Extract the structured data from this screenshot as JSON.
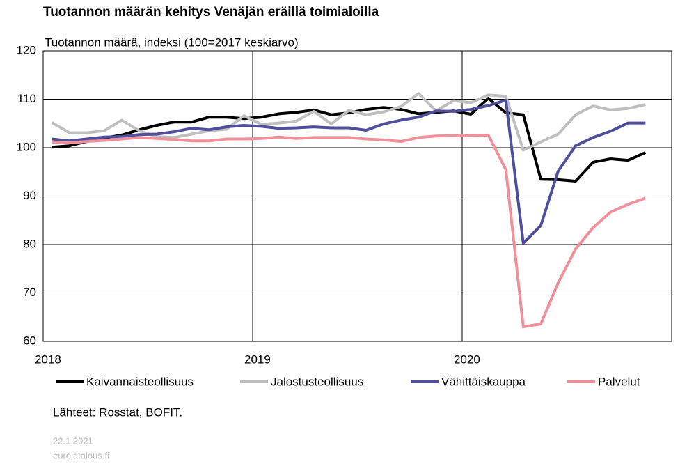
{
  "chart_data": {
    "type": "line",
    "title": "Tuotannon määrän kehitys Venäjän eräillä toimialoilla",
    "subtitle": "Tuotannon määrä, indeksi (100=2017 keskiarvo)",
    "source": "Lähteet: Rosstat, BOFIT.",
    "date": "22.1.2021",
    "site": "eurojatalous.fi",
    "categories": [
      "2018",
      null,
      null,
      null,
      null,
      null,
      null,
      null,
      null,
      null,
      null,
      null,
      "2019",
      null,
      null,
      null,
      null,
      null,
      null,
      null,
      null,
      null,
      null,
      null,
      "2020",
      null,
      null,
      null,
      null,
      null,
      null,
      null,
      null,
      null,
      null
    ],
    "ylim": [
      60,
      120
    ],
    "yticks": [
      60,
      70,
      80,
      90,
      100,
      110,
      120
    ],
    "grid": true,
    "series": [
      {
        "name": "Kaivannaisteollisuus",
        "color": "#000000",
        "values": [
          100.1,
          100.4,
          101.3,
          102,
          102.6,
          103.7,
          104.6,
          105.3,
          105.3,
          106.3,
          106.3,
          106,
          106.3,
          107,
          107.3,
          107.8,
          106.8,
          107.2,
          107.9,
          108.3,
          107.9,
          107,
          107.3,
          107.6,
          106.9,
          110.2,
          107.2,
          106.8,
          93.5,
          93.4,
          93.1,
          97,
          97.7,
          97.4,
          99
        ]
      },
      {
        "name": "Jalostusteollisuus",
        "color": "#bfbfbf",
        "values": [
          105.2,
          103.1,
          103.1,
          103.5,
          105.7,
          103.5,
          102.3,
          102.1,
          102.8,
          103.5,
          103.8,
          106.6,
          104.8,
          105.1,
          105.5,
          107.5,
          104.9,
          107.7,
          106.8,
          107.4,
          108.5,
          111.2,
          107.6,
          109.7,
          109.3,
          110.9,
          110.6,
          99.5,
          101.2,
          102.8,
          106.8,
          108.6,
          107.8,
          108.1,
          108.9
        ]
      },
      {
        "name": "Vähittäiskauppa",
        "color": "#4f4f9e",
        "values": [
          101.8,
          101.4,
          101.8,
          102.2,
          102.3,
          102.7,
          102.8,
          103.3,
          104,
          103.7,
          104.3,
          104.6,
          104.4,
          104,
          104.1,
          104.3,
          104.1,
          104.1,
          103.6,
          104.9,
          105.7,
          106.3,
          107.6,
          107.5,
          107.9,
          108.7,
          109.8,
          80.3,
          83.9,
          95.2,
          100.4,
          102.1,
          103.4,
          105.1,
          105.1
        ]
      },
      {
        "name": "Palvelut",
        "color": "#f0909a",
        "values": [
          101.2,
          101,
          101.3,
          101.5,
          101.8,
          102.1,
          101.9,
          101.7,
          101.4,
          101.4,
          101.8,
          101.8,
          101.9,
          102.2,
          101.9,
          102.1,
          102.1,
          102.1,
          101.8,
          101.6,
          101.3,
          102.1,
          102.4,
          102.5,
          102.5,
          102.6,
          95.5,
          63,
          63.6,
          72.1,
          79.1,
          83.5,
          86.7,
          88.3,
          89.6
        ]
      }
    ]
  }
}
